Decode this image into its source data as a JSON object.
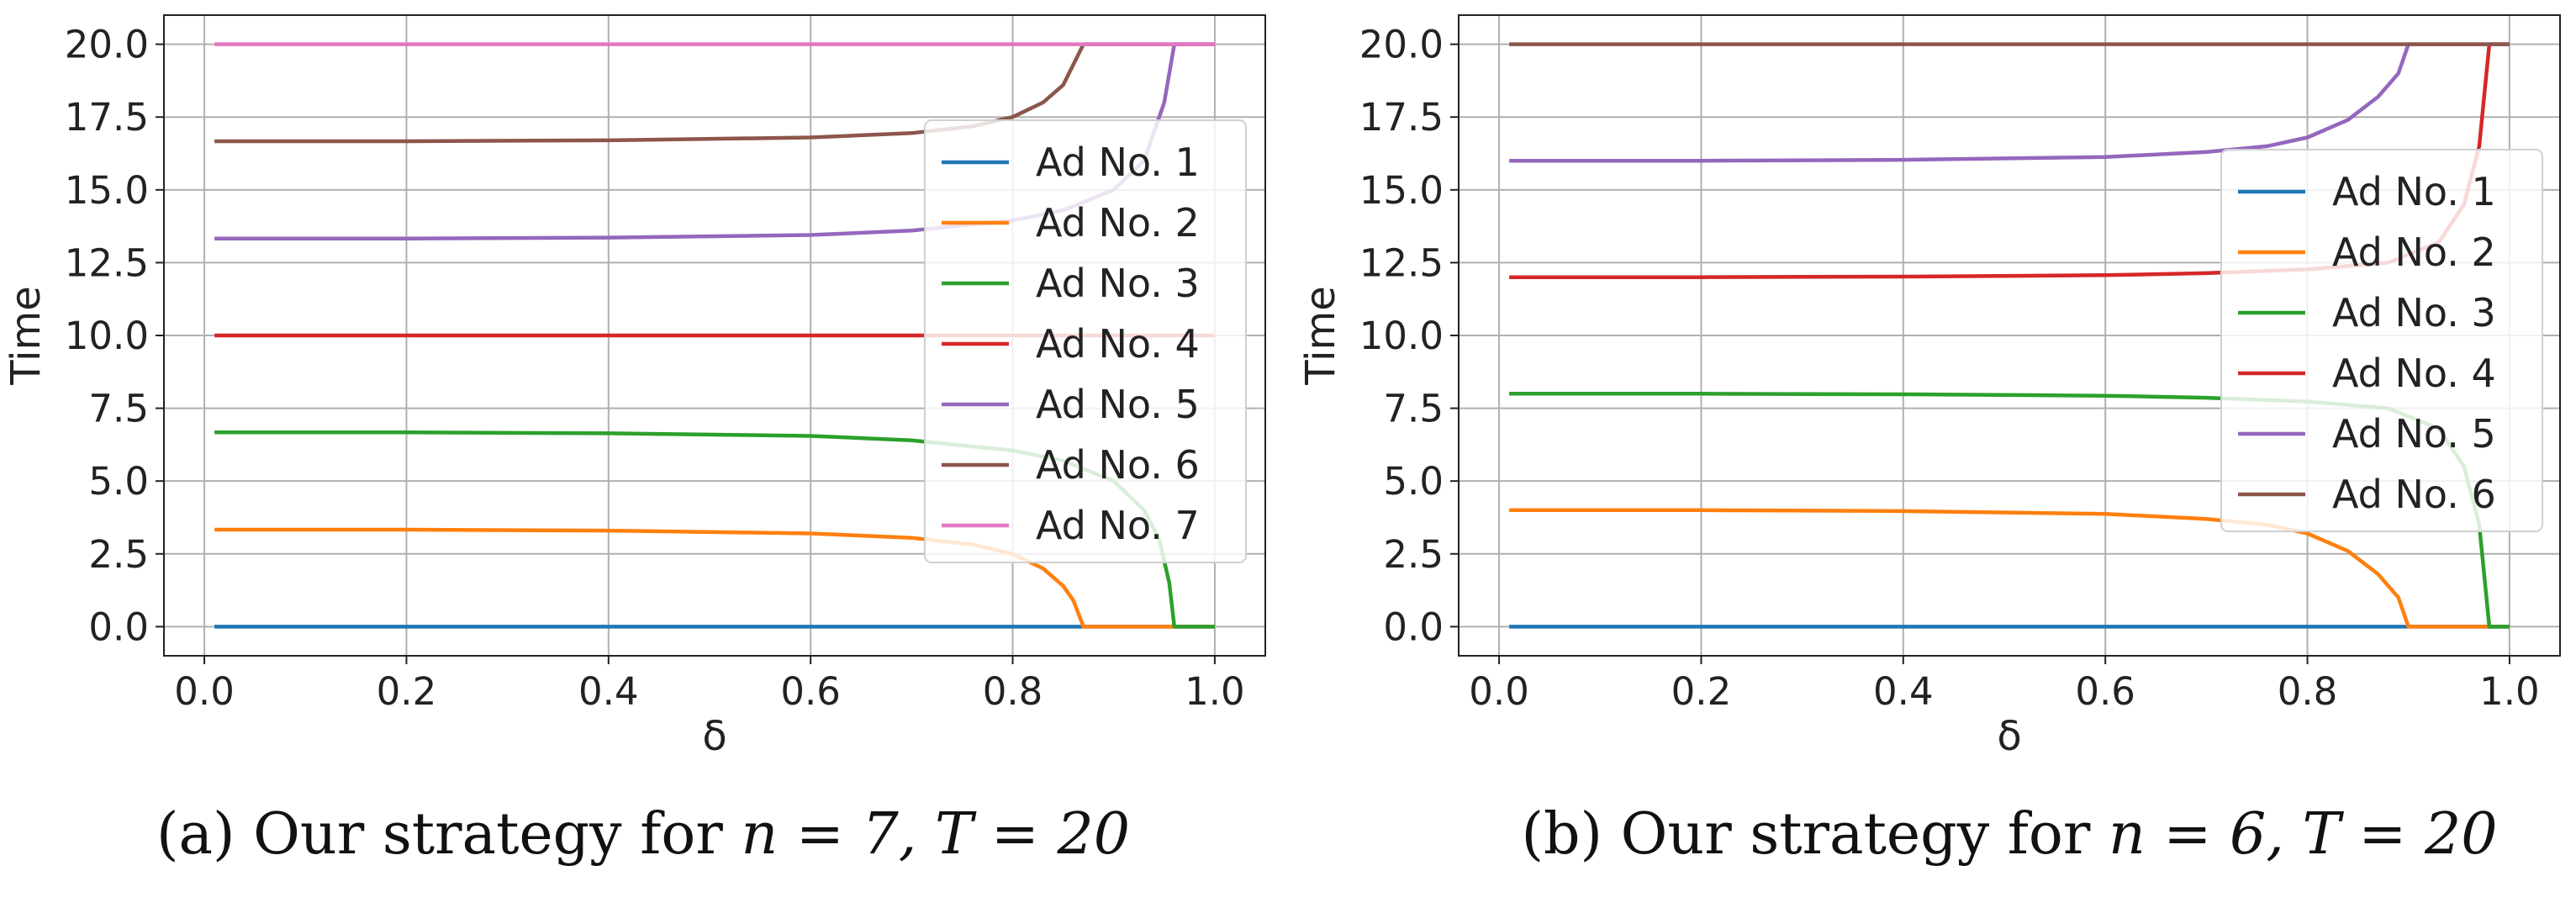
{
  "chart_data": [
    {
      "type": "line",
      "caption": "(a) Our strategy for n = 7, T = 20",
      "caption_parts": {
        "prefix": "(a) Our strategy for ",
        "math": "n = 7, T = 20"
      },
      "xlabel": "δ",
      "ylabel": "Time",
      "xlim": [
        0.0,
        1.0
      ],
      "ylim": [
        0.0,
        20.0
      ],
      "xticks": [
        "0.0",
        "0.2",
        "0.4",
        "0.6",
        "0.8",
        "1.0"
      ],
      "yticks": [
        "0.0",
        "2.5",
        "5.0",
        "7.5",
        "10.0",
        "12.5",
        "15.0",
        "17.5",
        "20.0"
      ],
      "grid": true,
      "legend_position": "right",
      "series": [
        {
          "name": "Ad No. 1",
          "color": "#1f77b4",
          "x": [
            0.01,
            1.0
          ],
          "y": [
            0.0,
            0.0
          ]
        },
        {
          "name": "Ad No. 2",
          "color": "#ff7f0e",
          "x": [
            0.01,
            0.2,
            0.4,
            0.6,
            0.7,
            0.76,
            0.8,
            0.83,
            0.85,
            0.86,
            0.87,
            1.0
          ],
          "y": [
            3.33,
            3.33,
            3.3,
            3.2,
            3.05,
            2.82,
            2.5,
            2.0,
            1.4,
            0.9,
            0.0,
            0.0
          ]
        },
        {
          "name": "Ad No. 3",
          "color": "#2ca02c",
          "x": [
            0.01,
            0.2,
            0.4,
            0.6,
            0.7,
            0.8,
            0.85,
            0.9,
            0.93,
            0.945,
            0.955,
            0.96,
            1.0
          ],
          "y": [
            6.67,
            6.67,
            6.64,
            6.55,
            6.4,
            6.05,
            5.7,
            5.0,
            4.0,
            3.0,
            1.5,
            0.0,
            0.0
          ]
        },
        {
          "name": "Ad No. 4",
          "color": "#d62728",
          "x": [
            0.01,
            1.0
          ],
          "y": [
            10.0,
            10.0
          ]
        },
        {
          "name": "Ad No. 5",
          "color": "#9467bd",
          "x": [
            0.01,
            0.2,
            0.4,
            0.6,
            0.7,
            0.8,
            0.85,
            0.9,
            0.93,
            0.95,
            0.96,
            1.0
          ],
          "y": [
            13.33,
            13.33,
            13.36,
            13.45,
            13.6,
            13.95,
            14.3,
            15.0,
            16.0,
            18.0,
            20.0,
            20.0
          ]
        },
        {
          "name": "Ad No. 6",
          "color": "#8c564b",
          "x": [
            0.01,
            0.2,
            0.4,
            0.6,
            0.7,
            0.76,
            0.8,
            0.83,
            0.85,
            0.87,
            1.0
          ],
          "y": [
            16.67,
            16.67,
            16.7,
            16.8,
            16.95,
            17.18,
            17.5,
            18.0,
            18.6,
            20.0,
            20.0
          ]
        },
        {
          "name": "Ad No. 7",
          "color": "#e377c2",
          "x": [
            0.01,
            1.0
          ],
          "y": [
            20.0,
            20.0
          ]
        }
      ]
    },
    {
      "type": "line",
      "caption": "(b) Our strategy for n = 6, T = 20",
      "caption_parts": {
        "prefix": "(b) Our strategy for ",
        "math": "n = 6, T = 20"
      },
      "xlabel": "δ",
      "ylabel": "Time",
      "xlim": [
        0.0,
        1.0
      ],
      "ylim": [
        0.0,
        20.0
      ],
      "xticks": [
        "0.0",
        "0.2",
        "0.4",
        "0.6",
        "0.8",
        "1.0"
      ],
      "yticks": [
        "0.0",
        "2.5",
        "5.0",
        "7.5",
        "10.0",
        "12.5",
        "15.0",
        "17.5",
        "20.0"
      ],
      "grid": true,
      "legend_position": "right",
      "series": [
        {
          "name": "Ad No. 1",
          "color": "#1f77b4",
          "x": [
            0.01,
            1.0
          ],
          "y": [
            0.0,
            0.0
          ]
        },
        {
          "name": "Ad No. 2",
          "color": "#ff7f0e",
          "x": [
            0.01,
            0.2,
            0.4,
            0.6,
            0.7,
            0.76,
            0.8,
            0.84,
            0.87,
            0.89,
            0.9,
            1.0
          ],
          "y": [
            4.0,
            4.0,
            3.97,
            3.87,
            3.7,
            3.5,
            3.2,
            2.6,
            1.8,
            1.0,
            0.0,
            0.0
          ]
        },
        {
          "name": "Ad No. 3",
          "color": "#2ca02c",
          "x": [
            0.01,
            0.2,
            0.4,
            0.6,
            0.7,
            0.8,
            0.88,
            0.93,
            0.955,
            0.97,
            0.98,
            1.0
          ],
          "y": [
            8.0,
            8.0,
            7.98,
            7.93,
            7.86,
            7.73,
            7.5,
            6.8,
            5.5,
            3.5,
            0.0,
            0.0
          ]
        },
        {
          "name": "Ad No. 4",
          "color": "#d62728",
          "x": [
            0.01,
            0.2,
            0.4,
            0.6,
            0.7,
            0.8,
            0.88,
            0.93,
            0.955,
            0.97,
            0.98,
            1.0
          ],
          "y": [
            12.0,
            12.0,
            12.02,
            12.07,
            12.14,
            12.27,
            12.5,
            13.2,
            14.5,
            16.5,
            20.0,
            20.0
          ]
        },
        {
          "name": "Ad No. 5",
          "color": "#9467bd",
          "x": [
            0.01,
            0.2,
            0.4,
            0.6,
            0.7,
            0.76,
            0.8,
            0.84,
            0.87,
            0.89,
            0.9,
            1.0
          ],
          "y": [
            16.0,
            16.0,
            16.03,
            16.13,
            16.3,
            16.5,
            16.8,
            17.4,
            18.2,
            19.0,
            20.0,
            20.0
          ]
        },
        {
          "name": "Ad No. 6",
          "color": "#8c564b",
          "x": [
            0.01,
            1.0
          ],
          "y": [
            20.0,
            20.0
          ]
        }
      ]
    }
  ]
}
